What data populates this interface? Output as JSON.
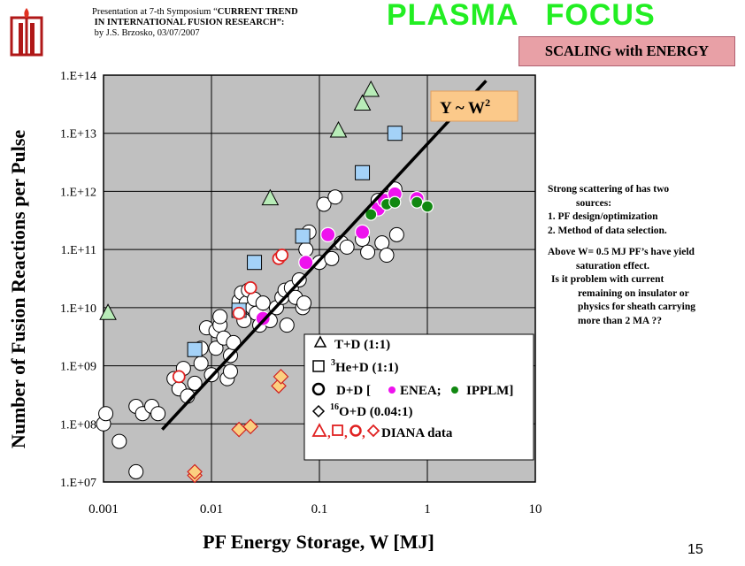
{
  "header": {
    "presentation_line1_prefix": "Presentation at 7-th Symposium “",
    "presentation_line1_bold": "CURRENT TREND",
    "presentation_line2_bold": "IN INTERNATIONAL FUSION RESEARCH”:",
    "presentation_line3": "by J.S. Brzosko,  03/07/2007",
    "title": "PLASMA   FOCUS",
    "title_color": "#22ee22",
    "subtitle": "SCALING with ENERGY",
    "page_number": "15"
  },
  "notes": {
    "line1": "Strong scattering of has two",
    "line2": "sources:",
    "line3": "1. PF design/optimization",
    "line4": "2. Method of data selection.",
    "line5": "Above W= 0.5 MJ PF’s have yield",
    "line6": "saturation effect.",
    "line7": "Is it problem with current",
    "line8": "remaining on insulator or",
    "line9": "physics for sheath carrying",
    "line10": "more than 2 MA ??"
  },
  "chart_data": {
    "type": "scatter",
    "xlabel": "PF Energy Storage,  W [MJ]",
    "ylabel": "Number of Fusion Reactions per Pulse",
    "xscale": "log",
    "yscale": "log",
    "xlim": [
      0.001,
      10
    ],
    "ylim": [
      10000000.0,
      100000000000000.0
    ],
    "x_tick_labels": [
      "0.001",
      "0.01",
      "0.1",
      "1",
      "10"
    ],
    "y_tick_labels": [
      "1.E+07",
      "1.E+08",
      "1.E+09",
      "1.E+10",
      "1.E+11",
      "1.E+12",
      "1.E+13",
      "1.E+14"
    ],
    "plot_background": "#c0c0c0",
    "grid": true,
    "annotation": "Y ~  W",
    "annotation_sup": "2",
    "annotation_bg": "#fbc98a",
    "fit_line": {
      "x": [
        0.0035,
        3.5
      ],
      "y": [
        80000000.0,
        80000000000000.0
      ]
    },
    "legend": {
      "placement": "lower-right",
      "entries": [
        {
          "marker": "triangle",
          "text": "T+D (1:1)"
        },
        {
          "marker": "square",
          "sup": "3",
          "text": "He+D (1:1)"
        },
        {
          "marker": "circle",
          "text_a": "D+D [",
          "enea": "ENEA;",
          "ipplm": "IPPLM]"
        },
        {
          "marker": "diamond",
          "sup": "16",
          "text": "O+D (0.04:1)"
        },
        {
          "marker": "mixed",
          "text": "DIANA data"
        }
      ]
    },
    "series": [
      {
        "name": "T+D (1:1)",
        "marker": "triangle",
        "color": "#b8ecb8",
        "points": [
          [
            0.0011,
            8000000000.0
          ],
          [
            0.035,
            750000000000.0
          ],
          [
            0.15,
            11000000000000.0
          ],
          [
            0.25,
            32000000000000.0
          ],
          [
            0.3,
            55000000000000.0
          ]
        ]
      },
      {
        "name": "He+D (1:1)",
        "marker": "square",
        "color": "#a4d2f8",
        "points": [
          [
            0.007,
            1900000000.0
          ],
          [
            0.018,
            9000000000.0
          ],
          [
            0.025,
            60000000000.0
          ],
          [
            0.07,
            170000000000.0
          ],
          [
            0.25,
            2100000000000.0
          ],
          [
            0.5,
            10000000000000.0
          ]
        ]
      },
      {
        "name": "D+D",
        "marker": "circle",
        "color": "#ffffff",
        "points": [
          [
            0.001,
            100000000.0
          ],
          [
            0.00105,
            150000000.0
          ],
          [
            0.0014,
            50000000.0
          ],
          [
            0.002,
            15000000.0
          ],
          [
            0.002,
            200000000.0
          ],
          [
            0.0023,
            150000000.0
          ],
          [
            0.0028,
            200000000.0
          ],
          [
            0.0032,
            150000000.0
          ],
          [
            0.0045,
            600000000.0
          ],
          [
            0.005,
            400000000.0
          ],
          [
            0.0055,
            900000000.0
          ],
          [
            0.006,
            300000000.0
          ],
          [
            0.007,
            500000000.0
          ],
          [
            0.008,
            1100000000.0
          ],
          [
            0.008,
            2000000000.0
          ],
          [
            0.009,
            4500000000.0
          ],
          [
            0.01,
            700000000.0
          ],
          [
            0.011,
            2000000000.0
          ],
          [
            0.011,
            4000000000.0
          ],
          [
            0.012,
            5000000000.0
          ],
          [
            0.012,
            7000000000.0
          ],
          [
            0.013,
            3000000000.0
          ],
          [
            0.014,
            600000000.0
          ],
          [
            0.015,
            800000000.0
          ],
          [
            0.015,
            1500000000.0
          ],
          [
            0.016,
            2500000000.0
          ],
          [
            0.018,
            10000000000.0
          ],
          [
            0.018,
            13000000000.0
          ],
          [
            0.019,
            18000000000.0
          ],
          [
            0.02,
            6000000000.0
          ],
          [
            0.021,
            12000000000.0
          ],
          [
            0.022,
            20000000000.0
          ],
          [
            0.024,
            10000000000.0
          ],
          [
            0.025,
            14000000000.0
          ],
          [
            0.026,
            8000000000.0
          ],
          [
            0.028,
            5000000000.0
          ],
          [
            0.03,
            12000000000.0
          ],
          [
            0.035,
            6000000000.0
          ],
          [
            0.04,
            10000000000.0
          ],
          [
            0.045,
            15000000000.0
          ],
          [
            0.048,
            20000000000.0
          ],
          [
            0.05,
            5000000000.0
          ],
          [
            0.055,
            22000000000.0
          ],
          [
            0.06,
            15000000000.0
          ],
          [
            0.065,
            30000000000.0
          ],
          [
            0.07,
            10000000000.0
          ],
          [
            0.072,
            12000000000.0
          ],
          [
            0.075,
            100000000000.0
          ],
          [
            0.08,
            200000000000.0
          ],
          [
            0.1,
            60000000000.0
          ],
          [
            0.11,
            600000000000.0
          ],
          [
            0.13,
            70000000000.0
          ],
          [
            0.14,
            800000000000.0
          ],
          [
            0.16,
            130000000000.0
          ],
          [
            0.18,
            110000000000.0
          ],
          [
            0.25,
            150000000000.0
          ],
          [
            0.28,
            90000000000.0
          ],
          [
            0.35,
            700000000000.0
          ],
          [
            0.38,
            130000000000.0
          ],
          [
            0.42,
            80000000000.0
          ],
          [
            0.5,
            1100000000000.0
          ],
          [
            0.52,
            180000000000.0
          ]
        ]
      },
      {
        "name": "ENEA",
        "marker": "circle",
        "color": "#ee11ee",
        "points": [
          [
            0.03,
            6500000000.0
          ],
          [
            0.075,
            60000000000.0
          ],
          [
            0.12,
            180000000000.0
          ],
          [
            0.25,
            200000000000.0
          ],
          [
            0.35,
            500000000000.0
          ],
          [
            0.4,
            700000000000.0
          ],
          [
            0.5,
            900000000000.0
          ],
          [
            0.8,
            750000000000.0
          ]
        ]
      },
      {
        "name": "IPPLM",
        "marker": "circle",
        "color": "#118811",
        "points": [
          [
            0.3,
            400000000000.0
          ],
          [
            0.42,
            600000000000.0
          ],
          [
            0.5,
            650000000000.0
          ],
          [
            0.8,
            650000000000.0
          ],
          [
            1.0,
            550000000000.0
          ]
        ]
      },
      {
        "name": "O+D (0.04:1)",
        "marker": "diamond",
        "color": "#fbd080",
        "points": [
          [
            0.007,
            13000000.0
          ],
          [
            0.007,
            15000000.0
          ],
          [
            0.018,
            80000000.0
          ],
          [
            0.023,
            90000000.0
          ],
          [
            0.042,
            450000000.0
          ],
          [
            0.044,
            650000000.0
          ]
        ]
      },
      {
        "name": "DIANA data",
        "marker": "circle-outline",
        "color": "#e02020",
        "points": [
          [
            0.005,
            650000000.0
          ],
          [
            0.018,
            8000000000.0
          ],
          [
            0.023,
            22000000000.0
          ],
          [
            0.042,
            70000000000.0
          ],
          [
            0.045,
            80000000000.0
          ]
        ]
      }
    ]
  }
}
